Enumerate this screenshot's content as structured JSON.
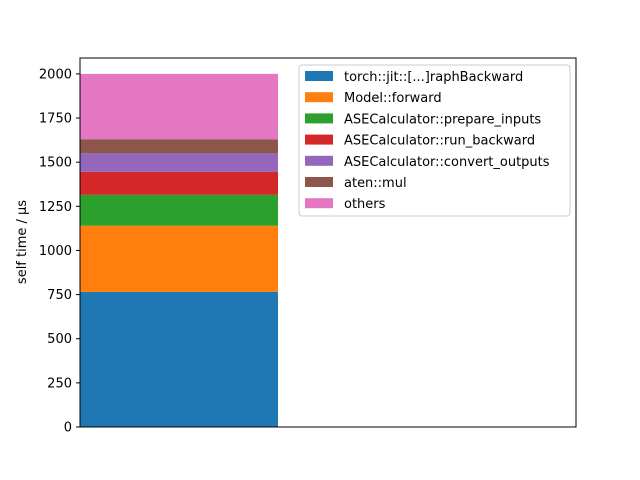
{
  "chart_data": {
    "type": "bar",
    "stacked": true,
    "title": "",
    "xlabel": "",
    "ylabel": "self time / µs",
    "ylim": [
      0,
      2090
    ],
    "yticks": [
      0,
      250,
      500,
      750,
      1000,
      1250,
      1500,
      1750,
      2000
    ],
    "categories": [
      ""
    ],
    "grid": false,
    "legend_position": "upper right",
    "series": [
      {
        "name": "torch::jit::[...]raphBackward",
        "values": [
          765
        ],
        "color": "#1f77b4"
      },
      {
        "name": "Model::forward",
        "values": [
          375
        ],
        "color": "#ff7f0e"
      },
      {
        "name": "ASECalculator::prepare_inputs",
        "values": [
          175
        ],
        "color": "#2ca02c"
      },
      {
        "name": "ASECalculator::run_backward",
        "values": [
          130
        ],
        "color": "#d62728"
      },
      {
        "name": "ASECalculator::convert_outputs",
        "values": [
          105
        ],
        "color": "#9467bd"
      },
      {
        "name": "aten::mul",
        "values": [
          80
        ],
        "color": "#8c564b"
      },
      {
        "name": "others",
        "values": [
          370
        ],
        "color": "#e377c2"
      }
    ]
  }
}
